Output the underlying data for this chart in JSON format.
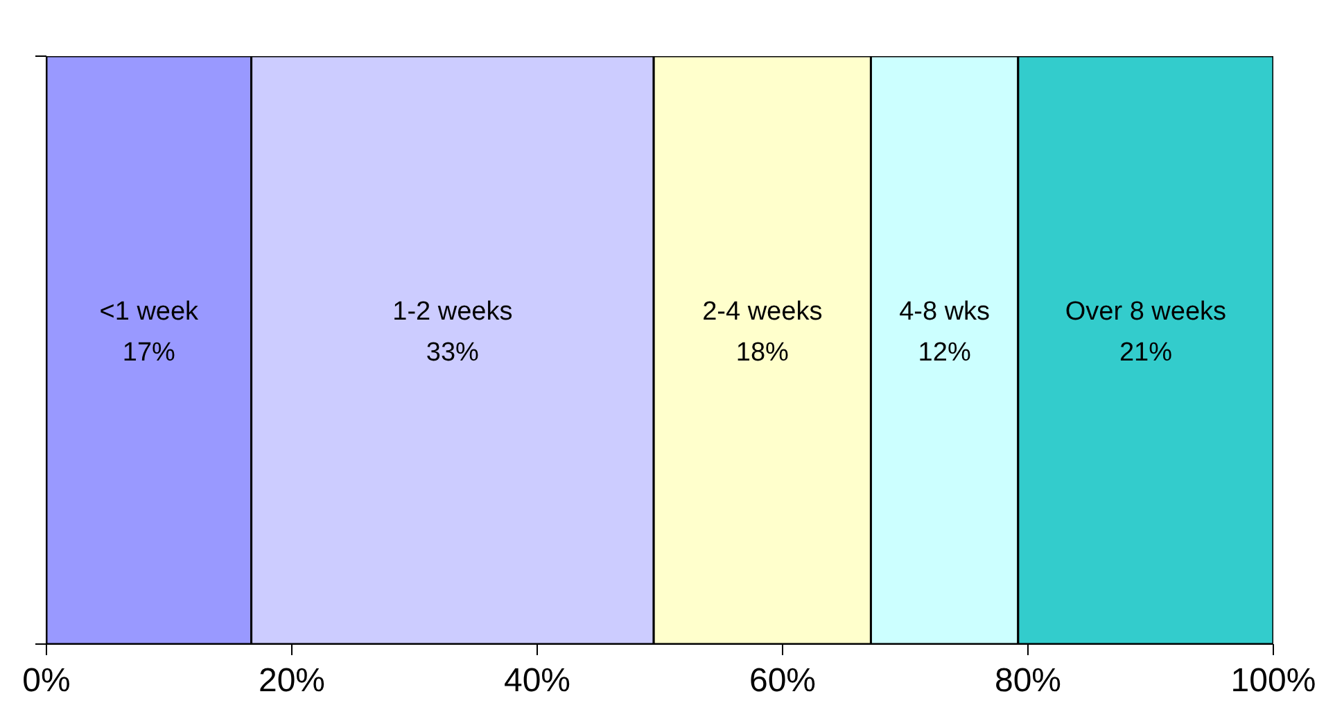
{
  "chart_data": {
    "type": "bar",
    "orientation": "horizontal",
    "stacked": true,
    "categories": [
      null
    ],
    "series": [
      {
        "name": "<1 week",
        "color": "#9999ff",
        "values": [
          16.7
        ],
        "value_labels": [
          "17%"
        ]
      },
      {
        "name": "1-2 weeks",
        "color": "#ccccff",
        "values": [
          32.8
        ],
        "value_labels": [
          "33%"
        ]
      },
      {
        "name": "2-4 weeks",
        "color": "#ffffcc",
        "values": [
          17.7
        ],
        "value_labels": [
          "18%"
        ]
      },
      {
        "name": "4-8 wks",
        "color": "#ccffff",
        "values": [
          12.0
        ],
        "value_labels": [
          "12%"
        ]
      },
      {
        "name": "Over 8 weeks",
        "color": "#33cccc",
        "values": [
          20.8
        ],
        "value_labels": [
          "21%"
        ]
      }
    ],
    "xlim": [
      0,
      100
    ],
    "xticks": [
      {
        "value": 0,
        "label": "0%"
      },
      {
        "value": 20,
        "label": "20%"
      },
      {
        "value": 40,
        "label": "40%"
      },
      {
        "value": 60,
        "label": "60%"
      },
      {
        "value": 80,
        "label": "80%"
      },
      {
        "value": 100,
        "label": "100%"
      }
    ],
    "tick_labels": "x"
  }
}
